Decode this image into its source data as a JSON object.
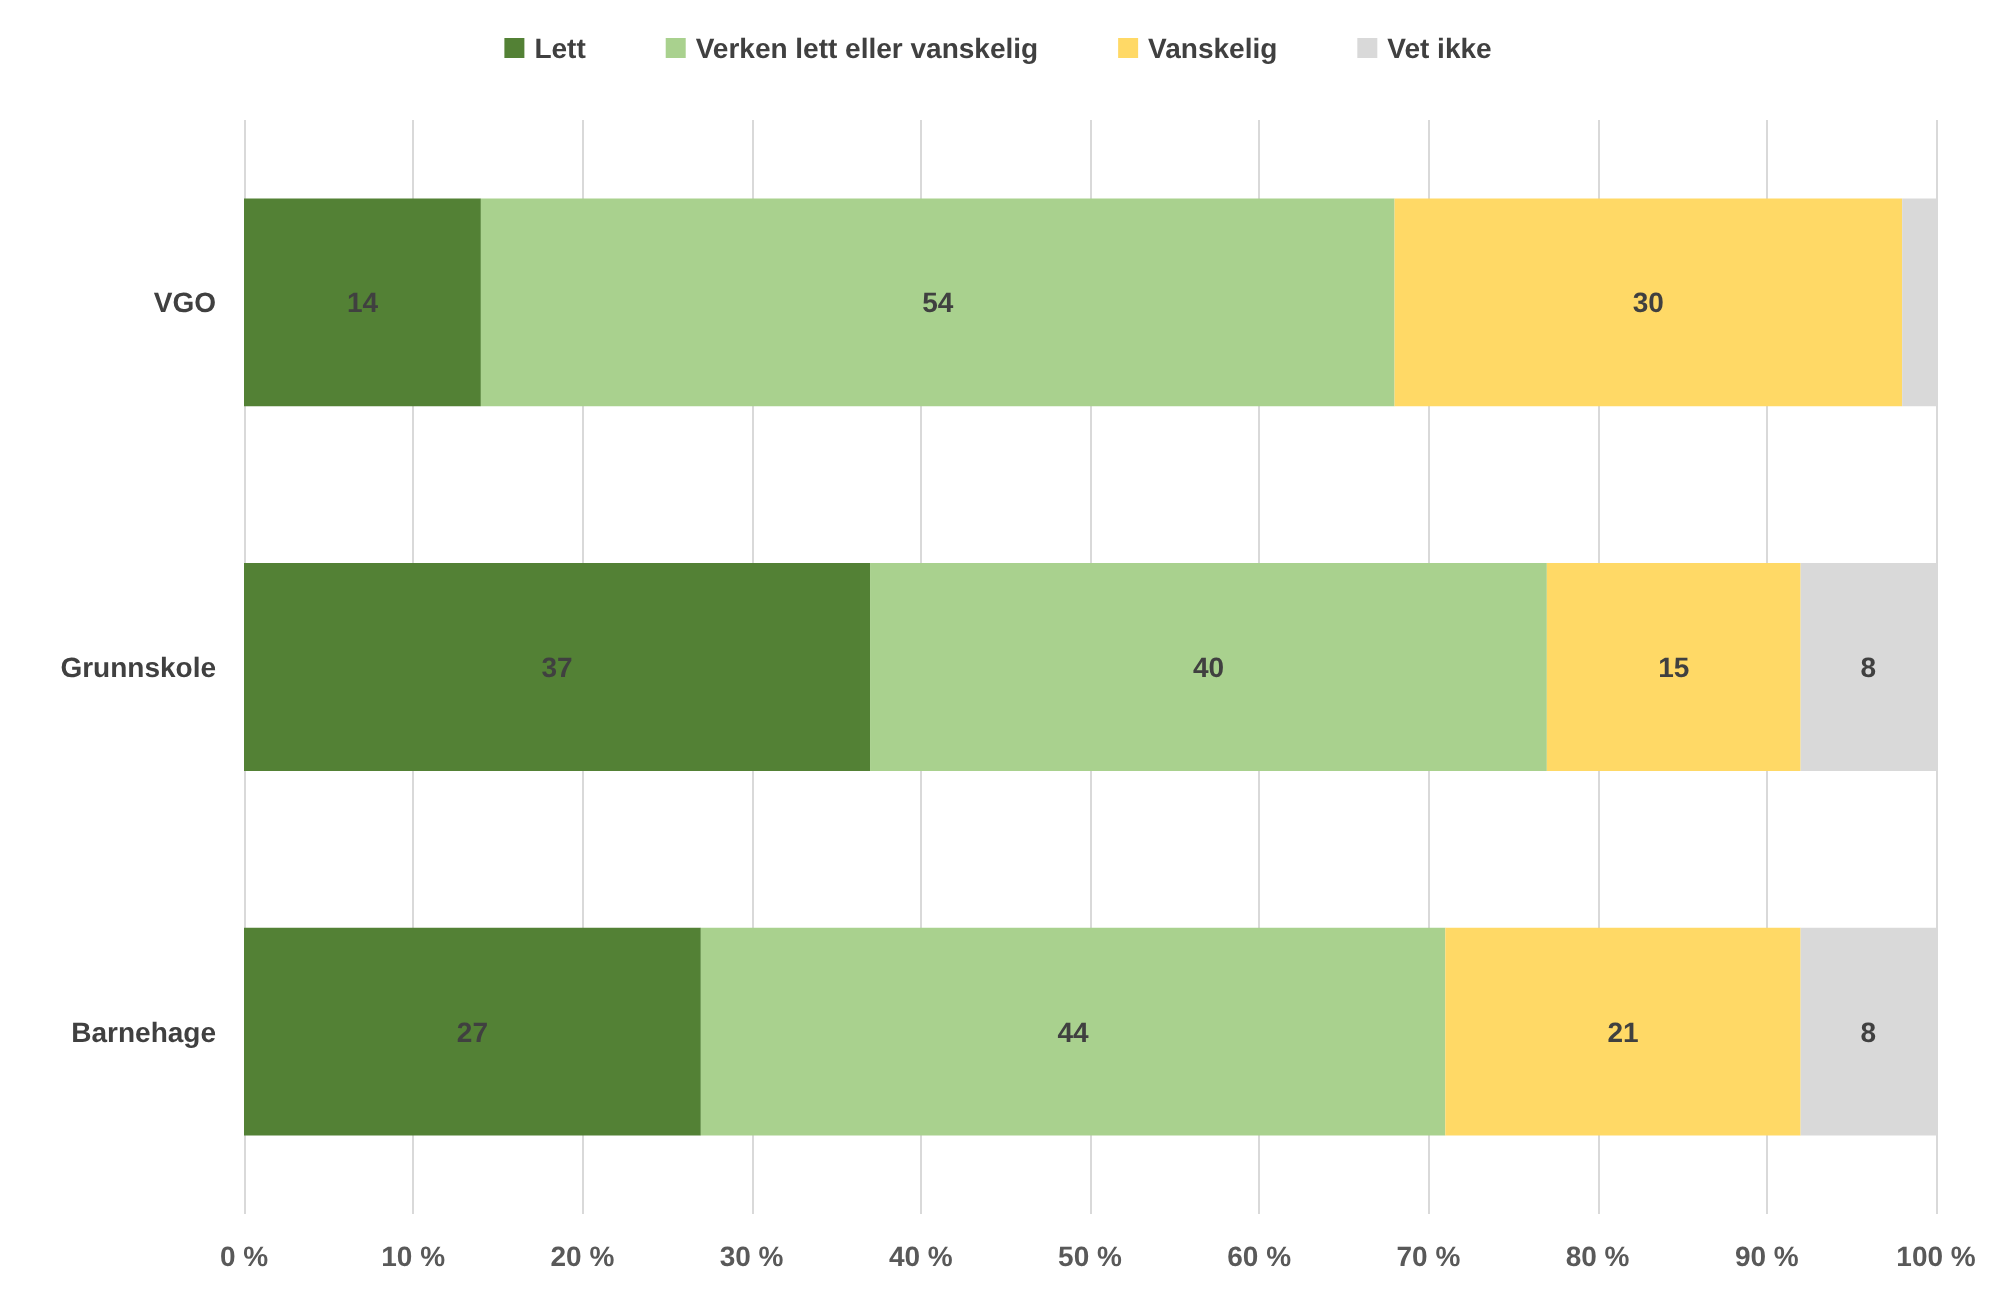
{
  "chart_data": {
    "type": "bar",
    "orientation": "horizontal",
    "stacked": true,
    "categories": [
      "VGO",
      "Grunnskole",
      "Barnehage"
    ],
    "series": [
      {
        "name": "Lett",
        "color": "#538135",
        "values": [
          14,
          37,
          27
        ],
        "value_labels": [
          "14",
          "37",
          "27"
        ]
      },
      {
        "name": "Verken lett eller vanskelig",
        "color": "#a9d18e",
        "values": [
          54,
          40,
          44
        ],
        "value_labels": [
          "54",
          "40",
          "44"
        ]
      },
      {
        "name": "Vanskelig",
        "color": "#ffd966",
        "values": [
          30,
          15,
          21
        ],
        "value_labels": [
          "30",
          "15",
          "21"
        ]
      },
      {
        "name": "Vet ikke",
        "color": "#d9d9d9",
        "values": [
          2,
          8,
          8
        ],
        "value_labels": [
          null,
          "8",
          "8"
        ]
      }
    ],
    "xlim": [
      0,
      100
    ],
    "xticks": [
      {
        "value": 0,
        "label": "0 %"
      },
      {
        "value": 10,
        "label": "10 %"
      },
      {
        "value": 20,
        "label": "20 %"
      },
      {
        "value": 30,
        "label": "30 %"
      },
      {
        "value": 40,
        "label": "40 %"
      },
      {
        "value": 50,
        "label": "50 %"
      },
      {
        "value": 60,
        "label": "60 %"
      },
      {
        "value": 70,
        "label": "70 %"
      },
      {
        "value": 80,
        "label": "80 %"
      },
      {
        "value": 90,
        "label": "90 %"
      },
      {
        "value": 100,
        "label": "100 %"
      }
    ],
    "grid": "x",
    "legend": "top"
  }
}
